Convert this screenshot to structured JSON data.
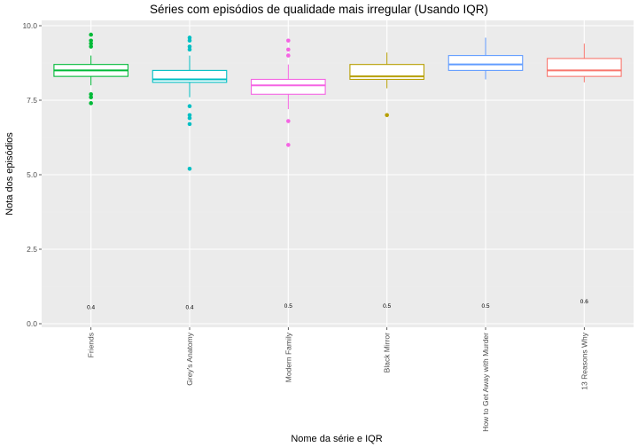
{
  "chart_data": {
    "type": "boxplot",
    "title": "Séries com episódios de qualidade mais irregular (Usando IQR)",
    "xlabel": "Nome da série e IQR",
    "ylabel": "Nota dos episódios",
    "ylim": [
      0,
      10.2
    ],
    "yticks": [
      "0.0",
      "2.5",
      "5.0",
      "7.5",
      "10.0"
    ],
    "grid": true,
    "legend": "none",
    "series": [
      {
        "name": "Friends",
        "color": "#00BA38",
        "whisker_low": 8.0,
        "q1": 8.3,
        "median": 8.5,
        "q3": 8.7,
        "whisker_high": 9.0,
        "outliers": [
          7.4,
          7.6,
          7.7,
          9.3,
          9.4,
          9.5,
          9.7
        ],
        "iqr_label": "0.4",
        "iqr_label_y": 0.55
      },
      {
        "name": "Grey's Anatomy",
        "color": "#00BFC4",
        "whisker_low": 7.6,
        "q1": 8.1,
        "median": 8.2,
        "q3": 8.5,
        "whisker_high": 9.0,
        "outliers": [
          5.2,
          6.7,
          6.9,
          7.0,
          7.3,
          9.2,
          9.3,
          9.5,
          9.6
        ],
        "iqr_label": "0.4",
        "iqr_label_y": 0.55
      },
      {
        "name": "Modern Family",
        "color": "#F564E3",
        "whisker_low": 7.2,
        "q1": 7.7,
        "median": 8.0,
        "q3": 8.2,
        "whisker_high": 8.7,
        "outliers": [
          6.0,
          6.8,
          9.0,
          9.2,
          9.5
        ],
        "iqr_label": "0.5",
        "iqr_label_y": 0.6
      },
      {
        "name": "Black Mirror",
        "color": "#B79F00",
        "whisker_low": 7.9,
        "q1": 8.2,
        "median": 8.3,
        "q3": 8.7,
        "whisker_high": 9.1,
        "outliers": [
          7.0
        ],
        "iqr_label": "0.5",
        "iqr_label_y": 0.6
      },
      {
        "name": "How to Get Away with Murder",
        "color": "#619CFF",
        "whisker_low": 8.2,
        "q1": 8.5,
        "median": 8.7,
        "q3": 9.0,
        "whisker_high": 9.6,
        "outliers": [],
        "iqr_label": "0.5",
        "iqr_label_y": 0.6
      },
      {
        "name": "13 Reasons Why",
        "color": "#F8766D",
        "whisker_low": 8.1,
        "q1": 8.3,
        "median": 8.5,
        "q3": 8.9,
        "whisker_high": 9.4,
        "outliers": [],
        "iqr_label": "0.6",
        "iqr_label_y": 0.75
      }
    ]
  },
  "colors": {
    "panel_background": "#EBEBEB",
    "grid_major": "#FFFFFF",
    "grid_minor": "#F2F2F2"
  }
}
